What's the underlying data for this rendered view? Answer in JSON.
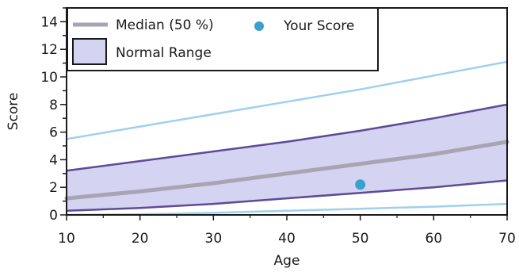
{
  "chart_data": {
    "type": "line",
    "title": "",
    "xlabel": "Age",
    "ylabel": "Score",
    "xlim": [
      10,
      70
    ],
    "ylim": [
      0,
      15
    ],
    "x_ticks": [
      "10",
      "20",
      "30",
      "40",
      "50",
      "60",
      "70"
    ],
    "y_ticks": [
      "0",
      "2",
      "4",
      "6",
      "8",
      "10",
      "12",
      "14"
    ],
    "legend_position": "top-left",
    "grid": false,
    "colors": {
      "median": "#a7a5b3",
      "band_fill": "#d4d3f1",
      "band_edge": "#5e4b96",
      "outer": "#9fd0ee",
      "score": "#3aa0cc",
      "axis": "#1a1a1a"
    },
    "series": [
      {
        "name": "Median (50 %)",
        "x": [
          10,
          20,
          30,
          40,
          50,
          60,
          70
        ],
        "y": [
          1.2,
          1.7,
          2.3,
          3.0,
          3.7,
          4.4,
          5.3
        ]
      },
      {
        "name": "Normal Range",
        "x": [
          10,
          20,
          30,
          40,
          50,
          60,
          70
        ],
        "lower": [
          0.3,
          0.5,
          0.8,
          1.2,
          1.6,
          2.0,
          2.5
        ],
        "upper": [
          3.2,
          3.9,
          4.6,
          5.3,
          6.1,
          7.0,
          8.0
        ]
      },
      {
        "x": [
          10,
          20,
          30,
          40,
          50,
          60,
          70
        ],
        "upper": [
          5.5,
          6.4,
          7.3,
          8.2,
          9.1,
          10.1,
          11.1
        ],
        "lower": [
          0.0,
          0.05,
          0.15,
          0.3,
          0.45,
          0.6,
          0.8
        ]
      },
      {
        "name": "Your Score",
        "points": [
          {
            "x": 50,
            "y": 2.2
          }
        ]
      }
    ]
  }
}
